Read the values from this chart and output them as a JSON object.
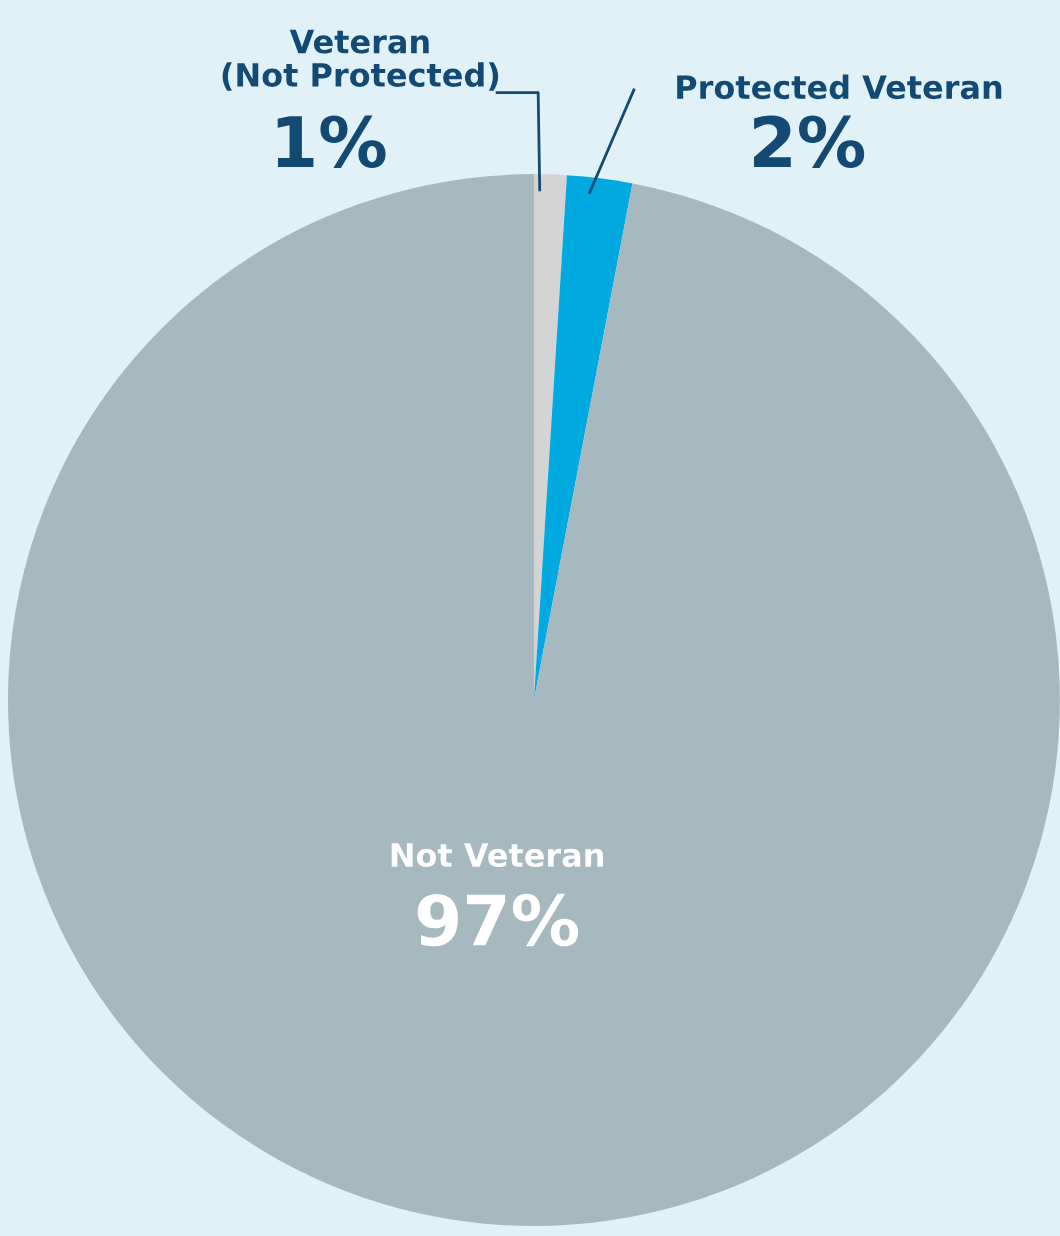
{
  "chart_data": {
    "type": "pie",
    "categories": [
      "Veteran\n(Not Protected)",
      "Protected Veteran",
      "Not Veteran"
    ],
    "values": [
      1,
      2,
      97
    ],
    "colors": [
      "#d4d4d4",
      "#00a9e0",
      "#a6b9bf"
    ],
    "value_labels": [
      "1%",
      "2%",
      "97%"
    ],
    "legend": false
  }
}
